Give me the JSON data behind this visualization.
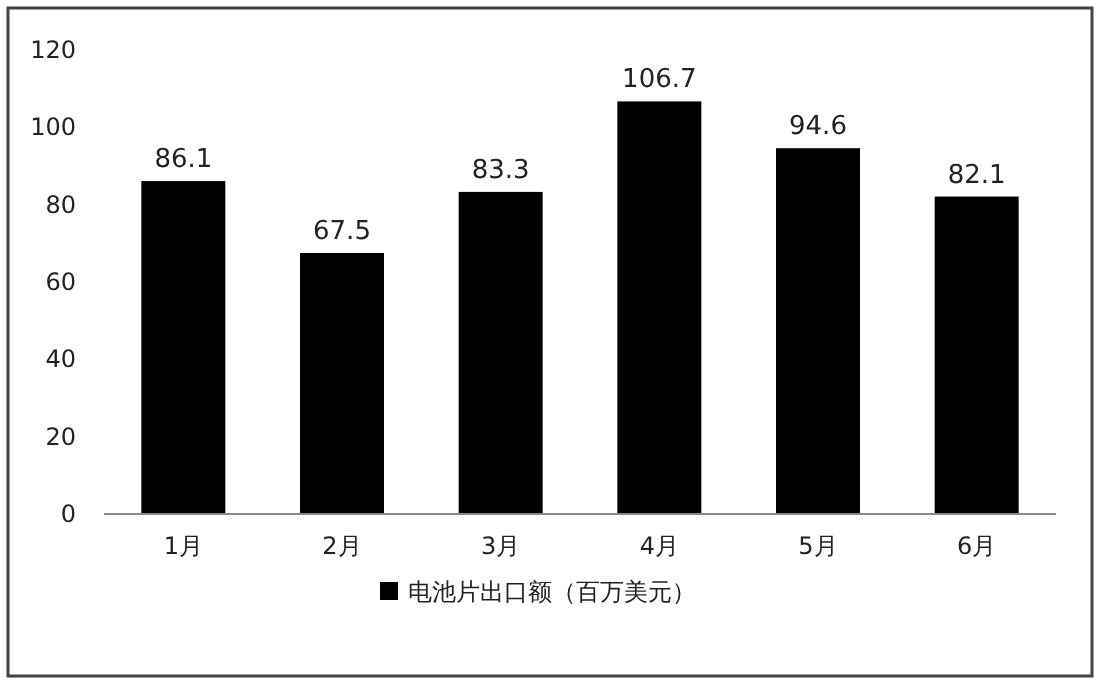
{
  "chart_data": {
    "type": "bar",
    "categories": [
      "1月",
      "2月",
      "3月",
      "4月",
      "5月",
      "6月"
    ],
    "series": [
      {
        "name": "电池片出口额（百万美元）",
        "color": "#000000",
        "values": [
          86.1,
          67.5,
          83.3,
          106.7,
          94.6,
          82.1
        ]
      }
    ],
    "ylim": [
      0,
      120
    ],
    "yticks": [
      0,
      20,
      40,
      60,
      80,
      100,
      120
    ],
    "data_labels": true,
    "legend": "bottom"
  }
}
